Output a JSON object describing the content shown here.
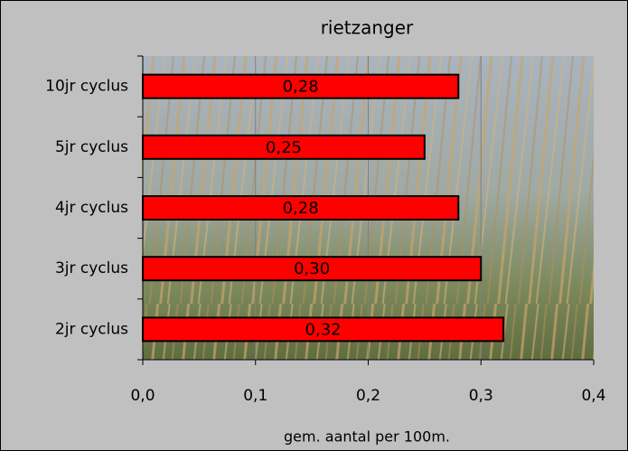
{
  "chart_data": {
    "type": "bar",
    "orientation": "horizontal",
    "title": "rietzanger",
    "x_label": "gem. aantal per 100m.",
    "categories": [
      "10jr cyclus",
      "5jr cyclus",
      "4jr cyclus",
      "3jr cyclus",
      "2jr cyclus"
    ],
    "values": [
      0.28,
      0.25,
      0.28,
      0.3,
      0.32
    ],
    "value_labels": [
      "0,28",
      "0,25",
      "0,28",
      "0,30",
      "0,32"
    ],
    "color": "#ff0000",
    "xlim": [
      0,
      0.4
    ],
    "xticks": [
      {
        "value": 0,
        "label": "0,0"
      },
      {
        "value": 0.1,
        "label": "0,1"
      },
      {
        "value": 0.2,
        "label": "0,2"
      },
      {
        "value": 0.3,
        "label": "0,3"
      },
      {
        "value": 0.4,
        "label": "0,4"
      }
    ],
    "grid": true
  }
}
